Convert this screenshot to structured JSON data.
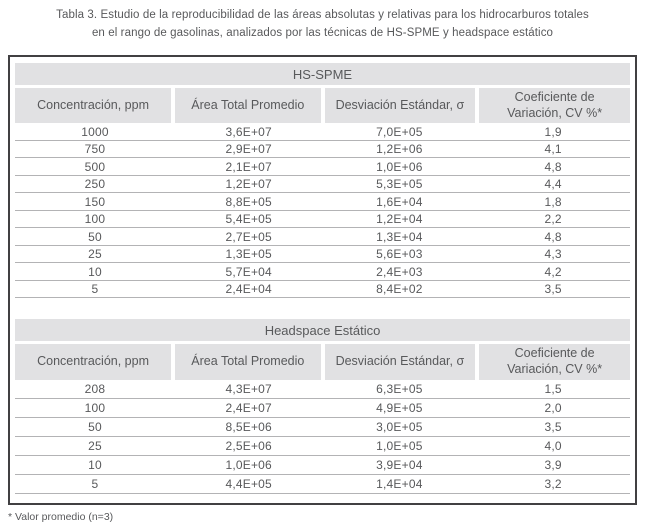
{
  "title": {
    "line1": "Tabla 3. Estudio de la reproducibilidad de las áreas absolutas y relativas para los hidrocarburos totales",
    "line2": "en el rango de gasolinas, analizados por las técnicas de HS-SPME y headspace estático"
  },
  "columns": [
    "Concentración, ppm",
    "Área Total Promedio",
    "Desviación Estándar, σ",
    "Coeficiente de Variación, CV %*"
  ],
  "sections": [
    {
      "name": "HS-SPME",
      "rows": [
        [
          "1000",
          "3,6E+07",
          "7,0E+05",
          "1,9"
        ],
        [
          "750",
          "2,9E+07",
          "1,2E+06",
          "4,1"
        ],
        [
          "500",
          "2,1E+07",
          "1,0E+06",
          "4,8"
        ],
        [
          "250",
          "1,2E+07",
          "5,3E+05",
          "4,4"
        ],
        [
          "150",
          "8,8E+05",
          "1,6E+04",
          "1,8"
        ],
        [
          "100",
          "5,4E+05",
          "1,2E+04",
          "2,2"
        ],
        [
          "50",
          "2,7E+05",
          "1,3E+04",
          "4,8"
        ],
        [
          "25",
          "1,3E+05",
          "5,6E+03",
          "4,3"
        ],
        [
          "10",
          "5,7E+04",
          "2,4E+03",
          "4,2"
        ],
        [
          "5",
          "2,4E+04",
          "8,4E+02",
          "3,5"
        ]
      ]
    },
    {
      "name": "Headspace Estático",
      "rows": [
        [
          "208",
          "4,3E+07",
          "6,3E+05",
          "1,5"
        ],
        [
          "100",
          "2,4E+07",
          "4,9E+05",
          "2,0"
        ],
        [
          "50",
          "8,5E+06",
          "3,0E+05",
          "3,5"
        ],
        [
          "25",
          "2,5E+06",
          "1,0E+05",
          "4,0"
        ],
        [
          "10",
          "1,0E+06",
          "3,9E+04",
          "3,9"
        ],
        [
          "5",
          "4,4E+05",
          "1,4E+04",
          "3,2"
        ]
      ]
    }
  ],
  "footnote": "* Valor promedio (n=3)",
  "colors": {
    "header_bg": "#e1e1e3",
    "outer_border": "#414042",
    "row_line": "#b3b3b5",
    "text": "#58595b"
  }
}
